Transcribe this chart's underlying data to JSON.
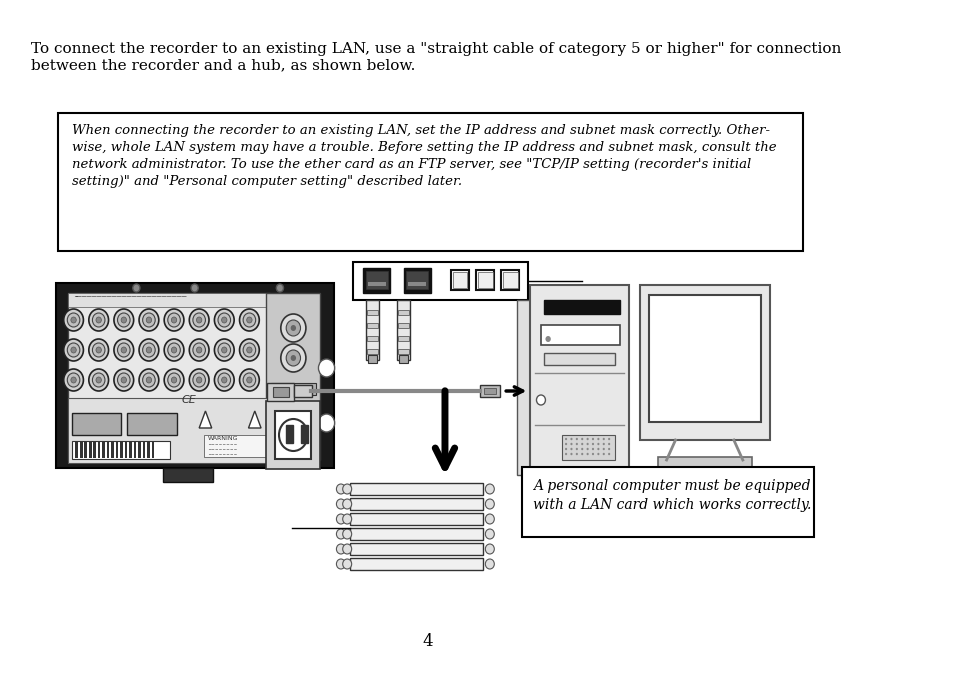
{
  "title_text": "To connect the recorder to an existing LAN, use a \"straight cable of category 5 or higher\" for connection\nbetween the recorder and a hub, as shown below.",
  "note_text": "When connecting the recorder to an existing LAN, set the IP address and subnet mask correctly. Other-\nwise, whole LAN system may have a trouble. Before setting the IP address and subnet mask, consult the\nnetwork administrator. To use the ether card as an FTP server, see \"TCP/IP setting (recorder's initial\nsetting)\" and \"Personal computer setting\" described later.",
  "pc_note_text": "A personal computer must be equipped\nwith a LAN card which works correctly.",
  "page_number": "4",
  "bg_color": "#ffffff",
  "text_color": "#000000",
  "border_color": "#000000"
}
